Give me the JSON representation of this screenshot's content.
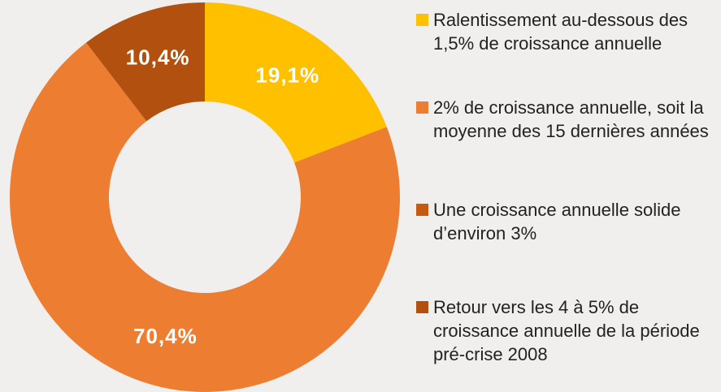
{
  "chart_data": {
    "type": "donut",
    "categories": [
      "Ralentissement au-dessous des 1,5% de croissance annuelle",
      "2% de croissance annuelle, soit la moyenne des 15 dernières années",
      "Une croissance annuelle solide d’environ 3%",
      "Retour vers les 4 à 5% de croissance annuelle de la période pré-crise 2008"
    ],
    "values": [
      19.1,
      70.4,
      0,
      10.4
    ],
    "value_labels": [
      "19,1%",
      "70,4%",
      null,
      "10,4%"
    ],
    "colors": [
      "#ffc000",
      "#ed7d31",
      "#c55a11",
      "#b2500f"
    ]
  }
}
